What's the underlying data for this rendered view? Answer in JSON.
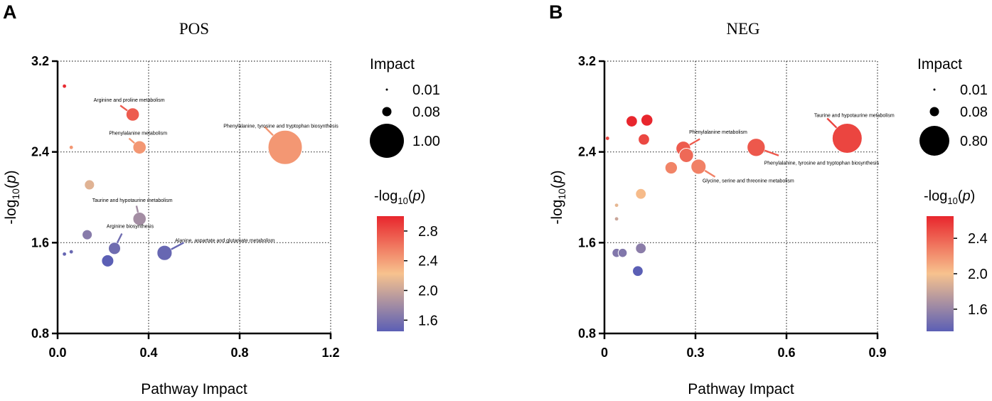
{
  "colors": {
    "scale_low": "#5b5fb5",
    "scale_mid": "#f7c28e",
    "scale_high": "#e8262d",
    "grid": "#333333",
    "axis": "#000000"
  },
  "chart_data": [
    {
      "panel_label": "A",
      "type": "scatter",
      "title": "POS",
      "xlabel": "Pathway Impact",
      "ylabel_main": "-log",
      "ylabel_sub": "10",
      "ylabel_tail": "(p)",
      "xlim": [
        0,
        1.2
      ],
      "ylim": [
        0.8,
        3.2
      ],
      "xticks": [
        0.0,
        0.4,
        0.8,
        1.2
      ],
      "xtick_labels": [
        "0.0",
        "0.4",
        "0.8",
        "1.2"
      ],
      "yticks": [
        0.8,
        1.6,
        2.4,
        3.2
      ],
      "ytick_labels": [
        "0.8",
        "1.6",
        "2.4",
        "3.2"
      ],
      "color_range": [
        1.45,
        3.0
      ],
      "size_legend": {
        "title": "Impact",
        "entries": [
          {
            "label": "0.01",
            "value": 0.01
          },
          {
            "label": "0.08",
            "value": 0.08
          },
          {
            "label": "1.00",
            "value": 1.0
          }
        ]
      },
      "colorbar": {
        "title_main": "-log",
        "title_sub": "10",
        "title_tail": "(p)",
        "ticks": [
          1.6,
          2.0,
          2.4,
          2.8
        ],
        "tick_labels": [
          "1.6",
          "2.0",
          "2.4",
          "2.8"
        ]
      },
      "points": [
        {
          "x": 0.03,
          "y": 2.98,
          "impact": 0.01,
          "label": ""
        },
        {
          "x": 0.33,
          "y": 2.73,
          "impact": 0.08,
          "label": "Arginine and proline metabolism"
        },
        {
          "x": 0.06,
          "y": 2.44,
          "impact": 0.01,
          "label": ""
        },
        {
          "x": 0.36,
          "y": 2.44,
          "impact": 0.08,
          "label": "Phenylalanine metabolism"
        },
        {
          "x": 1.0,
          "y": 2.44,
          "impact": 1.0,
          "label": "Phenylalanine, tyrosine and tryptophan biosynthesis"
        },
        {
          "x": 0.14,
          "y": 2.11,
          "impact": 0.03,
          "label": ""
        },
        {
          "x": 0.36,
          "y": 1.81,
          "impact": 0.08,
          "label": "Taurine and hypotaurine metabolism"
        },
        {
          "x": 0.13,
          "y": 1.67,
          "impact": 0.03,
          "label": ""
        },
        {
          "x": 0.25,
          "y": 1.55,
          "impact": 0.06,
          "label": "Arginine biosynthesis"
        },
        {
          "x": 0.47,
          "y": 1.51,
          "impact": 0.12,
          "label": "Alanine, aspartate and glutamate metabolism"
        },
        {
          "x": 0.22,
          "y": 1.44,
          "impact": 0.06,
          "label": ""
        },
        {
          "x": 0.06,
          "y": 1.52,
          "impact": 0.01,
          "label": ""
        },
        {
          "x": 0.03,
          "y": 1.5,
          "impact": 0.01,
          "label": ""
        }
      ]
    },
    {
      "panel_label": "B",
      "type": "scatter",
      "title": "NEG",
      "xlabel": "Pathway Impact",
      "ylabel_main": "-log",
      "ylabel_sub": "10",
      "ylabel_tail": "(p)",
      "xlim": [
        0,
        0.9
      ],
      "ylim": [
        0.8,
        3.2
      ],
      "xticks": [
        0.0,
        0.3,
        0.6,
        0.9
      ],
      "xtick_labels": [
        "0",
        "0.3",
        "0.6",
        "0.9"
      ],
      "yticks": [
        0.8,
        1.6,
        2.4,
        3.2
      ],
      "ytick_labels": [
        "0.8",
        "1.6",
        "2.4",
        "3.2"
      ],
      "color_range": [
        1.35,
        2.65
      ],
      "size_legend": {
        "title": "Impact",
        "entries": [
          {
            "label": "0.01",
            "value": 0.01
          },
          {
            "label": "0.08",
            "value": 0.08
          },
          {
            "label": "0.80",
            "value": 0.8
          }
        ]
      },
      "colorbar": {
        "title_main": "-log",
        "title_sub": "10",
        "title_tail": "(p)",
        "ticks": [
          1.6,
          2.0,
          2.4
        ],
        "tick_labels": [
          "1.6",
          "2.0",
          "2.4"
        ]
      },
      "points": [
        {
          "x": 0.01,
          "y": 2.52,
          "impact": 0.005,
          "label": ""
        },
        {
          "x": 0.09,
          "y": 2.67,
          "impact": 0.05,
          "label": ""
        },
        {
          "x": 0.14,
          "y": 2.68,
          "impact": 0.06,
          "label": ""
        },
        {
          "x": 0.13,
          "y": 2.51,
          "impact": 0.05,
          "label": ""
        },
        {
          "x": 0.26,
          "y": 2.43,
          "impact": 0.12,
          "label": "Phenylalanine metabolism"
        },
        {
          "x": 0.27,
          "y": 2.37,
          "impact": 0.11,
          "label": ""
        },
        {
          "x": 0.5,
          "y": 2.44,
          "impact": 0.22,
          "label": "Phenylalanine, tyrosine and tryptophan biosynthesis"
        },
        {
          "x": 0.8,
          "y": 2.52,
          "impact": 0.8,
          "label": "Taurine and hypotaurine metabolism"
        },
        {
          "x": 0.31,
          "y": 2.27,
          "impact": 0.13,
          "label": "Glycine, serine and threonine metabolism"
        },
        {
          "x": 0.22,
          "y": 2.26,
          "impact": 0.07,
          "label": ""
        },
        {
          "x": 0.12,
          "y": 2.03,
          "impact": 0.04,
          "label": ""
        },
        {
          "x": 0.04,
          "y": 1.93,
          "impact": 0.01,
          "label": ""
        },
        {
          "x": 0.04,
          "y": 1.81,
          "impact": 0.01,
          "label": ""
        },
        {
          "x": 0.12,
          "y": 1.55,
          "impact": 0.04,
          "label": ""
        },
        {
          "x": 0.04,
          "y": 1.51,
          "impact": 0.02,
          "label": ""
        },
        {
          "x": 0.06,
          "y": 1.51,
          "impact": 0.02,
          "label": ""
        },
        {
          "x": 0.11,
          "y": 1.35,
          "impact": 0.04,
          "label": ""
        }
      ]
    }
  ]
}
